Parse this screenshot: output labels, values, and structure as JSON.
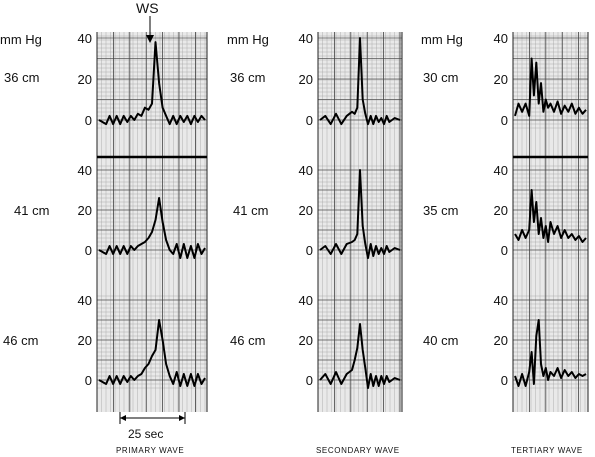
{
  "chart_data": [
    {
      "type": "line",
      "title": "PRIMARY WAVE",
      "ylabel": "mm Hg",
      "yticks": [
        "0",
        "20",
        "40"
      ],
      "ylim": [
        0,
        40
      ],
      "xlim": [
        0,
        60
      ],
      "x_unit": "sec",
      "marker": "WS",
      "scale_bar": "25 sec",
      "series": [
        {
          "name": "36 cm",
          "x": [
            0,
            4,
            6,
            8,
            10,
            12,
            14,
            16,
            18,
            20,
            22,
            24,
            26,
            28,
            30,
            32,
            34,
            36,
            38,
            40,
            42,
            44,
            46,
            48,
            50,
            52,
            54,
            56,
            58,
            60
          ],
          "y": [
            0,
            -2,
            2,
            -2,
            2,
            -2,
            2,
            -1,
            2,
            0,
            3,
            2,
            6,
            5,
            8,
            38,
            18,
            6,
            2,
            -2,
            2,
            -2,
            2,
            -1,
            2,
            -2,
            2,
            -1,
            2,
            0
          ]
        },
        {
          "name": "41 cm",
          "x": [
            0,
            4,
            6,
            8,
            10,
            12,
            14,
            16,
            18,
            20,
            22,
            24,
            26,
            28,
            30,
            32,
            34,
            36,
            38,
            40,
            42,
            44,
            46,
            48,
            50,
            52,
            54,
            56,
            58,
            60
          ],
          "y": [
            0,
            -2,
            2,
            -2,
            2,
            -2,
            2,
            -2,
            2,
            0,
            2,
            3,
            4,
            6,
            9,
            15,
            26,
            14,
            5,
            0,
            -2,
            3,
            -4,
            3,
            -4,
            2,
            -4,
            3,
            -2,
            1
          ]
        },
        {
          "name": "46 cm",
          "x": [
            0,
            4,
            6,
            8,
            10,
            12,
            14,
            16,
            18,
            20,
            22,
            24,
            26,
            28,
            30,
            32,
            34,
            36,
            38,
            40,
            42,
            44,
            46,
            48,
            50,
            52,
            54,
            56,
            58,
            60
          ],
          "y": [
            0,
            -2,
            2,
            -2,
            2,
            -2,
            2,
            -1,
            2,
            0,
            2,
            3,
            6,
            8,
            12,
            15,
            30,
            20,
            8,
            2,
            -2,
            4,
            -3,
            3,
            -3,
            3,
            -3,
            3,
            -2,
            1
          ]
        }
      ]
    },
    {
      "type": "line",
      "title": "SECONDARY WAVE",
      "ylabel": "mm Hg",
      "yticks": [
        "0",
        "20",
        "40"
      ],
      "ylim": [
        0,
        40
      ],
      "xlim": [
        0,
        60
      ],
      "x_unit": "sec",
      "series": [
        {
          "name": "36 cm",
          "x": [
            0,
            4,
            8,
            12,
            16,
            20,
            24,
            26,
            28,
            30,
            32,
            34,
            36,
            38,
            40,
            42,
            44,
            46,
            48,
            50,
            52,
            56,
            60
          ],
          "y": [
            0,
            2,
            -2,
            3,
            -2,
            2,
            4,
            3,
            6,
            40,
            10,
            3,
            -2,
            2,
            -2,
            2,
            -1,
            1,
            -2,
            2,
            -1,
            1,
            0
          ]
        },
        {
          "name": "41 cm",
          "x": [
            0,
            4,
            8,
            12,
            16,
            20,
            24,
            26,
            28,
            30,
            32,
            34,
            36,
            38,
            40,
            42,
            44,
            46,
            48,
            50,
            52,
            56,
            60
          ],
          "y": [
            0,
            2,
            -2,
            3,
            -2,
            3,
            4,
            5,
            8,
            40,
            12,
            3,
            -4,
            3,
            -3,
            2,
            -2,
            1,
            -2,
            2,
            -1,
            1,
            0
          ]
        },
        {
          "name": "46 cm",
          "x": [
            0,
            4,
            8,
            12,
            16,
            20,
            24,
            26,
            28,
            30,
            32,
            34,
            36,
            38,
            40,
            42,
            44,
            46,
            48,
            50,
            52,
            56,
            60
          ],
          "y": [
            0,
            3,
            -2,
            4,
            -2,
            3,
            5,
            10,
            16,
            28,
            15,
            6,
            -4,
            3,
            -3,
            2,
            -3,
            2,
            -2,
            2,
            -1,
            1,
            0
          ]
        }
      ]
    },
    {
      "type": "line",
      "title": "TERTIARY WAVE",
      "ylabel": "mm Hg",
      "yticks": [
        "0",
        "20",
        "40"
      ],
      "ylim": [
        0,
        40
      ],
      "xlim": [
        0,
        60
      ],
      "x_unit": "sec",
      "series": [
        {
          "name": "30 cm",
          "x": [
            0,
            3,
            6,
            9,
            12,
            14,
            16,
            18,
            20,
            22,
            24,
            26,
            28,
            30,
            33,
            36,
            39,
            42,
            45,
            48,
            51,
            54,
            57,
            60
          ],
          "y": [
            2,
            8,
            4,
            8,
            2,
            30,
            12,
            28,
            8,
            18,
            4,
            10,
            6,
            8,
            4,
            9,
            3,
            7,
            4,
            8,
            3,
            6,
            3,
            5
          ]
        },
        {
          "name": "35 cm",
          "x": [
            0,
            3,
            6,
            9,
            12,
            14,
            16,
            18,
            20,
            22,
            24,
            26,
            28,
            30,
            33,
            36,
            39,
            42,
            45,
            48,
            51,
            54,
            57,
            60
          ],
          "y": [
            8,
            5,
            10,
            6,
            10,
            30,
            14,
            24,
            8,
            16,
            6,
            12,
            4,
            14,
            8,
            12,
            6,
            10,
            6,
            8,
            5,
            7,
            4,
            6
          ]
        },
        {
          "name": "40 cm",
          "x": [
            0,
            3,
            6,
            9,
            12,
            14,
            16,
            18,
            20,
            22,
            24,
            26,
            28,
            30,
            33,
            36,
            39,
            42,
            45,
            48,
            51,
            54,
            57,
            60
          ],
          "y": [
            2,
            -3,
            3,
            -3,
            4,
            14,
            -2,
            22,
            30,
            8,
            2,
            6,
            0,
            4,
            2,
            6,
            1,
            5,
            2,
            4,
            1,
            3,
            2,
            3
          ]
        }
      ]
    }
  ],
  "labels": {
    "ws": "WS",
    "unit": "mm Hg",
    "scale": "25 sec",
    "captions": [
      "PRIMARY WAVE",
      "SECONDARY WAVE",
      "TERTIARY WAVE"
    ]
  }
}
